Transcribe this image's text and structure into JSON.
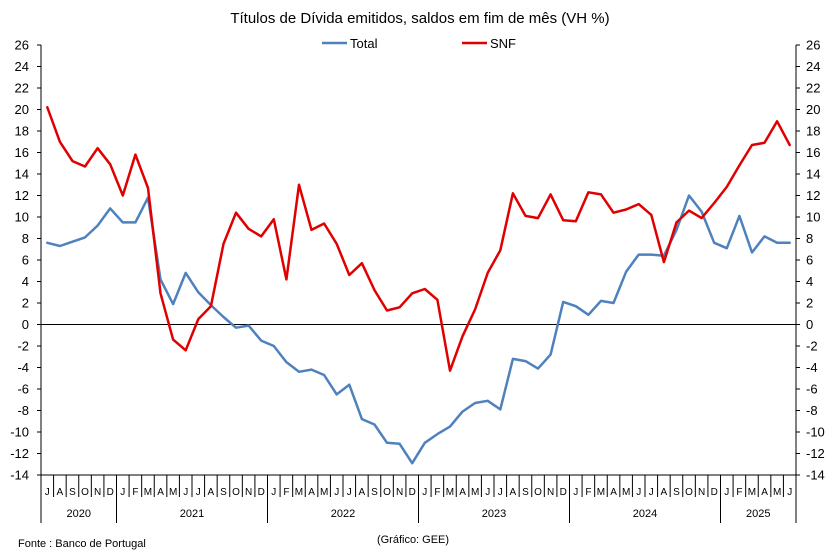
{
  "chart_data": {
    "type": "line",
    "title": "Títulos de Dívida emitidos, saldos em fim de mês  (VH %)",
    "ylim": [
      -14,
      26
    ],
    "yticks": [
      -14,
      -12,
      -10,
      -8,
      -6,
      -4,
      -2,
      0,
      2,
      4,
      6,
      8,
      10,
      12,
      14,
      16,
      18,
      20,
      22,
      24,
      26
    ],
    "ytick_labels": [
      "-14",
      "-12",
      "-10",
      "-8",
      "-6",
      "-4",
      "-2",
      "0",
      "2",
      "4",
      "6",
      "8",
      "10",
      "12",
      "14",
      "16",
      "18",
      "20",
      "22",
      "24",
      "26"
    ],
    "grid": false,
    "legend_position": "top-center",
    "months": [
      "J",
      "A",
      "S",
      "O",
      "N",
      "D",
      "J",
      "F",
      "M",
      "A",
      "M",
      "J",
      "J",
      "A",
      "S",
      "O",
      "N",
      "D",
      "J",
      "F",
      "M",
      "A",
      "M",
      "J",
      "J",
      "A",
      "S",
      "O",
      "N",
      "D",
      "J",
      "F",
      "M",
      "A",
      "M",
      "J",
      "J",
      "A",
      "S",
      "O",
      "N",
      "D",
      "J",
      "F",
      "M",
      "A",
      "M",
      "J",
      "J",
      "A",
      "S",
      "O",
      "N",
      "D",
      "J",
      "F",
      "M",
      "A",
      "M",
      "J"
    ],
    "x": [
      "2020-07",
      "2020-08",
      "2020-09",
      "2020-10",
      "2020-11",
      "2020-12",
      "2021-01",
      "2021-02",
      "2021-03",
      "2021-04",
      "2021-05",
      "2021-06",
      "2021-07",
      "2021-08",
      "2021-09",
      "2021-10",
      "2021-11",
      "2021-12",
      "2022-01",
      "2022-02",
      "2022-03",
      "2022-04",
      "2022-05",
      "2022-06",
      "2022-07",
      "2022-08",
      "2022-09",
      "2022-10",
      "2022-11",
      "2022-12",
      "2023-01",
      "2023-02",
      "2023-03",
      "2023-04",
      "2023-05",
      "2023-06",
      "2023-07",
      "2023-08",
      "2023-09",
      "2023-10",
      "2023-11",
      "2023-12",
      "2024-01",
      "2024-02",
      "2024-03",
      "2024-04",
      "2024-05",
      "2024-06",
      "2024-07",
      "2024-08",
      "2024-09",
      "2024-10",
      "2024-11",
      "2024-12",
      "2025-01",
      "2025-02",
      "2025-03",
      "2025-04",
      "2025-05",
      "2025-06"
    ],
    "years": [
      {
        "label": "2020",
        "start": 0,
        "count": 6
      },
      {
        "label": "2021",
        "start": 6,
        "count": 12
      },
      {
        "label": "2022",
        "start": 18,
        "count": 12
      },
      {
        "label": "2023",
        "start": 30,
        "count": 12
      },
      {
        "label": "2024",
        "start": 42,
        "count": 12
      },
      {
        "label": "2025",
        "start": 54,
        "count": 6
      }
    ],
    "series": [
      {
        "name": "Total",
        "color": "#4F81BD",
        "values": [
          7.6,
          7.3,
          7.7,
          8.1,
          9.2,
          10.8,
          9.5,
          9.5,
          11.8,
          4.2,
          1.9,
          4.8,
          3.0,
          1.8,
          0.7,
          -0.3,
          -0.1,
          -1.5,
          -2.0,
          -3.5,
          -4.4,
          -4.2,
          -4.7,
          -6.5,
          -5.6,
          -8.8,
          -9.3,
          -11.0,
          -11.1,
          -12.9,
          -11.0,
          -10.2,
          -9.5,
          -8.1,
          -7.3,
          -7.1,
          -7.9,
          -3.2,
          -3.4,
          -4.1,
          -2.8,
          2.1,
          1.7,
          0.9,
          2.2,
          2.0,
          4.9,
          6.5,
          6.5,
          6.4,
          8.8,
          12.0,
          10.5,
          7.6,
          7.1,
          10.1,
          6.7,
          8.2,
          7.6,
          7.6
        ]
      },
      {
        "name": "SNF",
        "color": "#E00000",
        "values": [
          20.2,
          17.0,
          15.2,
          14.7,
          16.4,
          14.9,
          12.0,
          15.8,
          12.7,
          2.9,
          -1.4,
          -2.4,
          0.5,
          1.7,
          7.5,
          10.4,
          8.9,
          8.2,
          9.8,
          4.2,
          13.0,
          8.8,
          9.4,
          7.5,
          4.6,
          5.7,
          3.2,
          1.3,
          1.6,
          2.9,
          3.3,
          2.3,
          -4.3,
          -1.1,
          1.4,
          4.8,
          6.9,
          12.2,
          10.1,
          9.9,
          12.1,
          9.7,
          9.6,
          12.3,
          12.1,
          10.4,
          10.7,
          11.2,
          10.2,
          5.8,
          9.5,
          10.6,
          9.9,
          11.3,
          12.8,
          14.8,
          16.7,
          16.9,
          18.9,
          16.7
        ]
      }
    ]
  },
  "footer": {
    "source": "Fonte : Banco de Portugal",
    "credit": "(Gráfico: GEE)"
  }
}
